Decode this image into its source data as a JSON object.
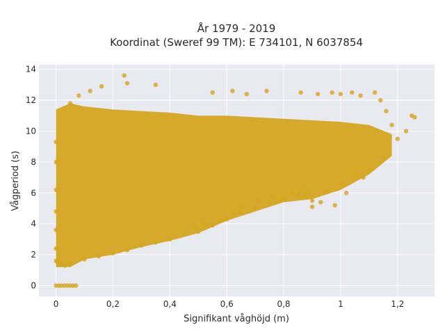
{
  "chart_data": {
    "type": "scatter",
    "title_line1": "År 1979 - 2019",
    "title_line2": "Koordinat (Sweref 99 TM): E 734101, N 6037854",
    "xlabel": "Signifikant våghöjd (m)",
    "ylabel": "Vågperiod (s)",
    "xlim": [
      -0.06,
      1.33
    ],
    "ylim": [
      -0.7,
      14.3
    ],
    "x_ticks": [
      0,
      0.2,
      0.4,
      0.6,
      0.8,
      1,
      1.2
    ],
    "x_tick_labels": [
      "0",
      "0,2",
      "0,4",
      "0,6",
      "0,8",
      "1",
      "1,2"
    ],
    "y_ticks": [
      0,
      2,
      4,
      6,
      8,
      10,
      12,
      14
    ],
    "y_tick_labels": [
      "0",
      "2",
      "4",
      "6",
      "8",
      "10",
      "12",
      "14"
    ],
    "grid": true,
    "legend": "none",
    "marker_color": "#D4A51E",
    "background_color": "#E8E9F1",
    "series": [
      {
        "points": [
          [
            0.0,
            0.0
          ],
          [
            0.01,
            0.0
          ],
          [
            0.02,
            0.0
          ],
          [
            0.03,
            0.0
          ],
          [
            0.04,
            0.0
          ],
          [
            0.05,
            0.0
          ],
          [
            0.06,
            0.0
          ],
          [
            0.07,
            0.0
          ],
          [
            0.0,
            1.6
          ],
          [
            0.0,
            2.4
          ],
          [
            0.0,
            3.6
          ],
          [
            0.0,
            4.8
          ],
          [
            0.0,
            6.2
          ],
          [
            0.0,
            8.0
          ],
          [
            0.0,
            9.3
          ],
          [
            0.01,
            1.5
          ],
          [
            0.02,
            1.4
          ],
          [
            0.03,
            1.3
          ],
          [
            0.05,
            1.4
          ],
          [
            0.1,
            1.7
          ],
          [
            0.15,
            1.9
          ],
          [
            0.2,
            2.1
          ],
          [
            0.25,
            2.3
          ],
          [
            0.3,
            2.6
          ],
          [
            0.35,
            2.8
          ],
          [
            0.4,
            3.0
          ],
          [
            0.45,
            3.3
          ],
          [
            0.5,
            3.5
          ],
          [
            0.55,
            3.9
          ],
          [
            0.6,
            4.3
          ],
          [
            0.65,
            4.7
          ],
          [
            0.7,
            5.0
          ],
          [
            0.75,
            5.3
          ],
          [
            0.8,
            5.6
          ],
          [
            0.85,
            5.9
          ],
          [
            0.9,
            5.5
          ],
          [
            0.95,
            6.1
          ],
          [
            1.0,
            6.6
          ],
          [
            1.05,
            7.1
          ],
          [
            1.1,
            7.5
          ],
          [
            1.15,
            8.3
          ],
          [
            1.2,
            9.5
          ],
          [
            1.23,
            10.0
          ],
          [
            1.26,
            10.9
          ],
          [
            1.25,
            11.0
          ],
          [
            0.55,
            12.5
          ],
          [
            0.62,
            12.6
          ],
          [
            0.67,
            12.4
          ],
          [
            0.74,
            12.6
          ],
          [
            0.86,
            12.5
          ],
          [
            0.92,
            12.4
          ],
          [
            0.97,
            12.5
          ],
          [
            1.0,
            12.4
          ],
          [
            1.04,
            12.5
          ],
          [
            1.07,
            12.3
          ],
          [
            1.12,
            12.5
          ],
          [
            1.14,
            12.0
          ],
          [
            1.16,
            11.3
          ],
          [
            1.18,
            10.4
          ],
          [
            0.35,
            13.0
          ],
          [
            0.25,
            13.1
          ],
          [
            0.24,
            13.6
          ],
          [
            0.16,
            12.9
          ],
          [
            0.12,
            12.6
          ],
          [
            0.08,
            12.3
          ],
          [
            0.05,
            11.8
          ],
          [
            0.98,
            5.2
          ],
          [
            0.9,
            5.1
          ],
          [
            0.93,
            5.4
          ],
          [
            1.02,
            6.0
          ],
          [
            1.08,
            7.0
          ],
          [
            0.86,
            6.2
          ],
          [
            0.88,
            5.8
          ],
          [
            0.83,
            6.0
          ],
          [
            0.79,
            5.5
          ],
          [
            0.76,
            5.8
          ],
          [
            0.71,
            5.5
          ],
          [
            0.65,
            5.1
          ],
          [
            0.62,
            4.6
          ],
          [
            0.58,
            4.2
          ],
          [
            0.52,
            4.0
          ],
          [
            0.49,
            3.8
          ]
        ]
      }
    ]
  }
}
